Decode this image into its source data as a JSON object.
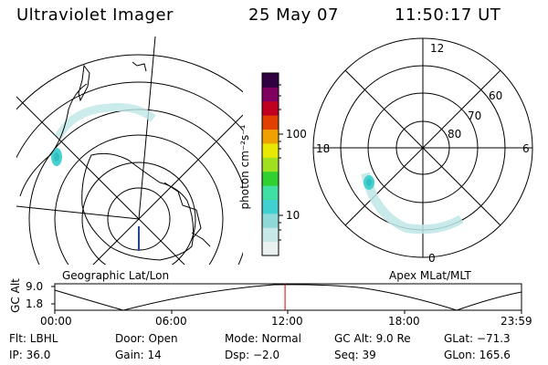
{
  "header": {
    "title": "Ultraviolet Imager",
    "date": "25 May 07",
    "time": "11:50:17 UT"
  },
  "left_panel": {
    "label": "Geographic Lat/Lon"
  },
  "right_panel": {
    "label": "Apex MLat/MLT",
    "mlt_labels": [
      "12",
      "18",
      "6",
      "0"
    ],
    "mlat_labels": [
      "60",
      "70",
      "80"
    ]
  },
  "colorbar": {
    "unit_label": "photon cm⁻²s⁻¹",
    "tick_labels": [
      "100",
      "10"
    ],
    "scale": "log",
    "colors": [
      "#e8f0f0",
      "#c8e8e8",
      "#8fd8d8",
      "#40d0d0",
      "#40e0a0",
      "#30d030",
      "#a0e020",
      "#e8e800",
      "#f0a000",
      "#e04000",
      "#c00020",
      "#800060",
      "#300040"
    ]
  },
  "altitude_plot": {
    "ylabel": "GC Alt",
    "y_ticks": [
      "9.0",
      "1.8"
    ],
    "x_ticks": [
      "00:00",
      "06:00",
      "12:00",
      "18:00",
      "23:59"
    ],
    "current_marker_hours": 11.84,
    "marker_color": "#e00000"
  },
  "info": {
    "flt": "Flt: LBHL",
    "door": "Door: Open",
    "mode": "Mode: Normal",
    "gcalt": "GC Alt: 9.0 Re",
    "glat": "GLat: −71.3",
    "ip": "IP: 36.0",
    "gain": "Gain: 14",
    "dsp": "Dsp:    −2.0",
    "seq": "Seq: 39",
    "glon": "GLon: 165.6"
  }
}
